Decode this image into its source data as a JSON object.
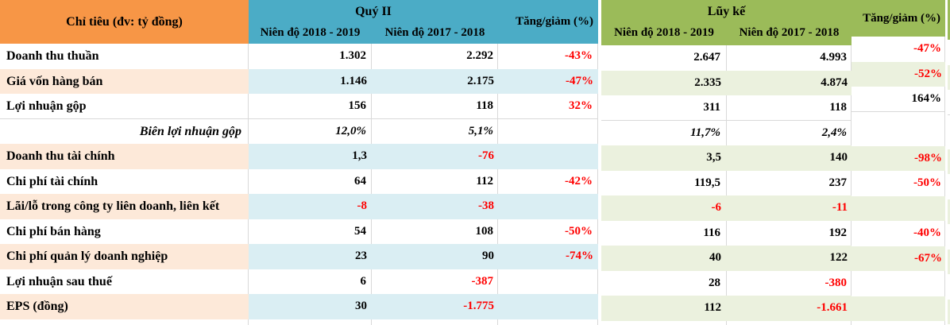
{
  "table": {
    "title_header": "Chỉ tiêu (đv: tỷ đồng)",
    "sections": [
      {
        "group_label": "Quý II",
        "period_headers": [
          "Niên độ 2018 - 2019",
          "Niên độ 2017 - 2018"
        ],
        "change_header": "Tăng/giảm (%)"
      },
      {
        "group_label": "Lũy kế",
        "period_headers": [
          "Niên độ 2018 - 2019",
          "Niên độ 2017 - 2018"
        ],
        "change_header": "Tăng/giảm (%)"
      }
    ],
    "rows": [
      {
        "label": "Doanh thu thuần",
        "italic": false,
        "striped": false,
        "q2": [
          {
            "v": "1.302",
            "red": false
          },
          {
            "v": "2.292",
            "red": false
          }
        ],
        "q2_change": {
          "v": "-43%",
          "red": true
        },
        "ytd": [
          {
            "v": "2.647",
            "red": false
          },
          {
            "v": "4.993",
            "red": false
          }
        ],
        "ytd_change": {
          "v": "-47%",
          "red": true
        }
      },
      {
        "label": "Giá vốn hàng bán",
        "italic": false,
        "striped": true,
        "q2": [
          {
            "v": "1.146",
            "red": false
          },
          {
            "v": "2.175",
            "red": false
          }
        ],
        "q2_change": {
          "v": "-47%",
          "red": true
        },
        "ytd": [
          {
            "v": "2.335",
            "red": false
          },
          {
            "v": "4.874",
            "red": false
          }
        ],
        "ytd_change": {
          "v": "-52%",
          "red": true
        }
      },
      {
        "label": "Lợi nhuận gộp",
        "italic": false,
        "striped": false,
        "q2": [
          {
            "v": "156",
            "red": false
          },
          {
            "v": "118",
            "red": false
          }
        ],
        "q2_change": {
          "v": "32%",
          "red": true
        },
        "ytd": [
          {
            "v": "311",
            "red": false
          },
          {
            "v": "118",
            "red": false
          }
        ],
        "ytd_change": {
          "v": "164%",
          "red": false
        }
      },
      {
        "label": "Biên lợi nhuận gộp",
        "italic": true,
        "striped": false,
        "q2": [
          {
            "v": "12,0%",
            "red": false
          },
          {
            "v": "5,1%",
            "red": false
          }
        ],
        "q2_change": {
          "v": "",
          "red": false
        },
        "ytd": [
          {
            "v": "11,7%",
            "red": false
          },
          {
            "v": "2,4%",
            "red": false
          }
        ],
        "ytd_change": {
          "v": "",
          "red": false
        }
      },
      {
        "label": "Doanh thu tài chính",
        "italic": false,
        "striped": true,
        "q2": [
          {
            "v": "1,3",
            "red": false
          },
          {
            "v": "-76",
            "red": true
          }
        ],
        "q2_change": {
          "v": "",
          "red": false
        },
        "ytd": [
          {
            "v": "3,5",
            "red": false
          },
          {
            "v": "140",
            "red": false
          }
        ],
        "ytd_change": {
          "v": "-98%",
          "red": true
        }
      },
      {
        "label": "Chi phí tài chính",
        "italic": false,
        "striped": false,
        "q2": [
          {
            "v": "64",
            "red": false
          },
          {
            "v": "112",
            "red": false
          }
        ],
        "q2_change": {
          "v": "-42%",
          "red": true
        },
        "ytd": [
          {
            "v": "119,5",
            "red": false
          },
          {
            "v": "237",
            "red": false
          }
        ],
        "ytd_change": {
          "v": "-50%",
          "red": true
        }
      },
      {
        "label": "Lãi/lỗ trong công ty liên doanh, liên kết",
        "italic": false,
        "striped": true,
        "q2": [
          {
            "v": "-8",
            "red": true
          },
          {
            "v": "-38",
            "red": true
          }
        ],
        "q2_change": {
          "v": "",
          "red": false
        },
        "ytd": [
          {
            "v": "-6",
            "red": true
          },
          {
            "v": "-11",
            "red": true
          }
        ],
        "ytd_change": {
          "v": "",
          "red": false
        }
      },
      {
        "label": "Chi phí bán hàng",
        "italic": false,
        "striped": false,
        "q2": [
          {
            "v": "54",
            "red": false
          },
          {
            "v": "108",
            "red": false
          }
        ],
        "q2_change": {
          "v": "-50%",
          "red": true
        },
        "ytd": [
          {
            "v": "116",
            "red": false
          },
          {
            "v": "192",
            "red": false
          }
        ],
        "ytd_change": {
          "v": "-40%",
          "red": true
        }
      },
      {
        "label": "Chi phí quản lý doanh nghiệp",
        "italic": false,
        "striped": true,
        "q2": [
          {
            "v": "23",
            "red": false
          },
          {
            "v": "90",
            "red": false
          }
        ],
        "q2_change": {
          "v": "-74%",
          "red": true
        },
        "ytd": [
          {
            "v": "40",
            "red": false
          },
          {
            "v": "122",
            "red": false
          }
        ],
        "ytd_change": {
          "v": "-67%",
          "red": true
        }
      },
      {
        "label": "Lợi nhuận sau thuế",
        "italic": false,
        "striped": false,
        "q2": [
          {
            "v": "6",
            "red": false
          },
          {
            "v": "-387",
            "red": true
          }
        ],
        "q2_change": {
          "v": "",
          "red": false
        },
        "ytd": [
          {
            "v": "28",
            "red": false
          },
          {
            "v": "-380",
            "red": true
          }
        ],
        "ytd_change": {
          "v": "",
          "red": false
        }
      },
      {
        "label": "EPS (đồng)",
        "italic": false,
        "striped": true,
        "q2": [
          {
            "v": "30",
            "red": false
          },
          {
            "v": "-1.775",
            "red": true
          }
        ],
        "q2_change": {
          "v": "",
          "red": false
        },
        "ytd": [
          {
            "v": "112",
            "red": false
          },
          {
            "v": "-1.661",
            "red": true
          }
        ],
        "ytd_change": {
          "v": "",
          "red": false
        }
      }
    ],
    "colors": {
      "header_orange": "#F79646",
      "header_teal": "#4BACC6",
      "header_green": "#9BBB59",
      "stripe_peach": "#FDE9D9",
      "stripe_blue": "#DAEEF3",
      "stripe_green": "#EBF1DE",
      "negative_red": "#FF0000",
      "text_black": "#000000",
      "gridline": "#D9D9D9"
    }
  }
}
